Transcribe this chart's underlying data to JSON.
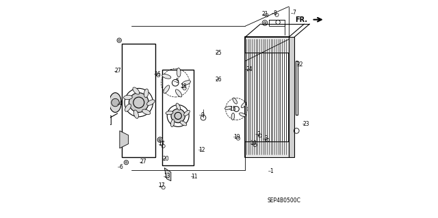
{
  "title": "",
  "bg_color": "#ffffff",
  "line_color": "#000000",
  "diagram_code": "SEP4B0500C",
  "fr_label": "FR.",
  "figsize": [
    6.4,
    3.19
  ],
  "dpi": 100
}
